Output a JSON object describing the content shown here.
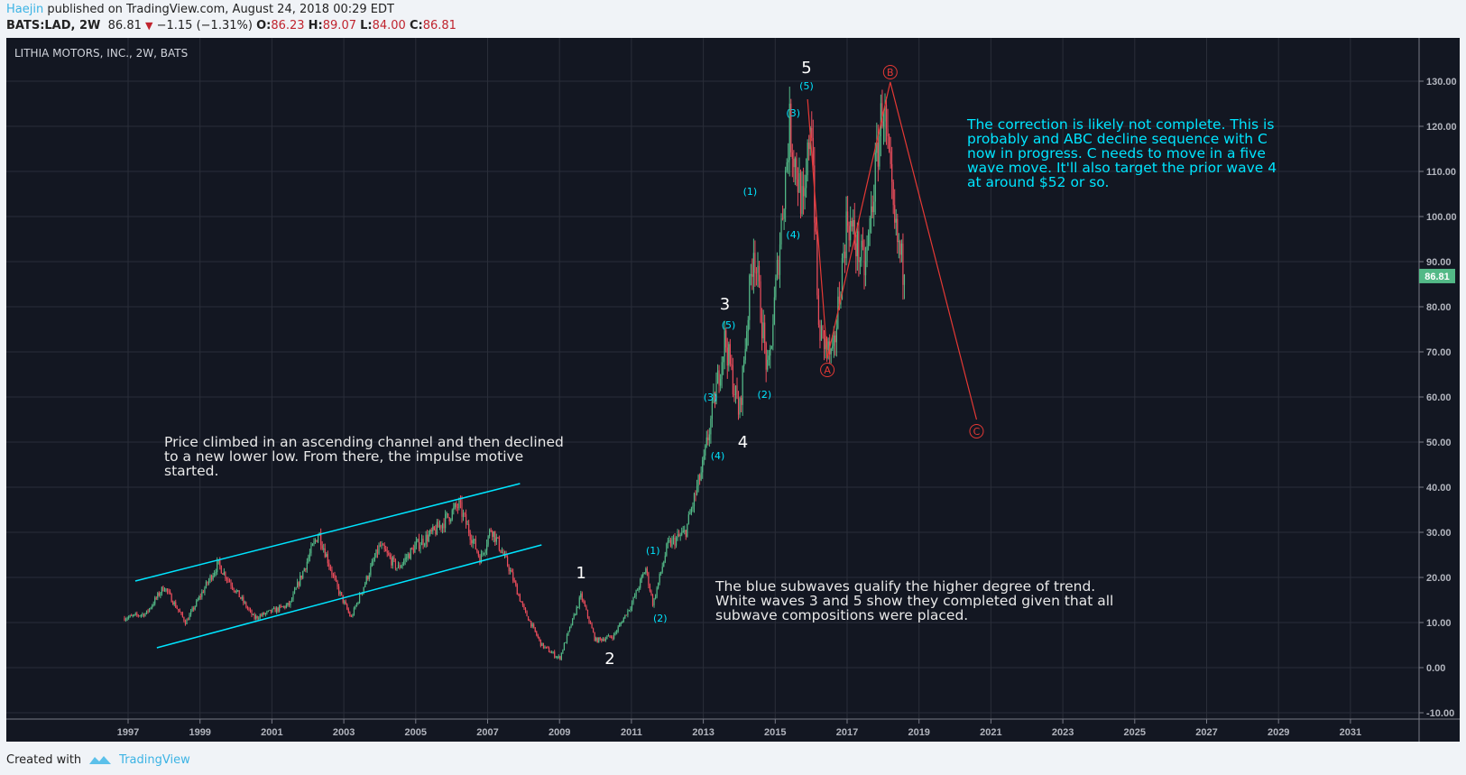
{
  "header": {
    "author": "Haejin",
    "published": "published on TradingView.com, August 24, 2018 00:29 EDT",
    "symbol": "BATS:LAD, 2W",
    "last": "86.81",
    "change": "−1.15 (−1.31%)",
    "o_label": "O:",
    "o": "86.23",
    "h_label": "H:",
    "h": "89.07",
    "l_label": "L:",
    "l": "84.00",
    "c_label": "C:",
    "c": "86.81"
  },
  "chart_title": "LITHIA MOTORS, INC., 2W, BATS",
  "notes": {
    "left": "Price climbed in an ascending channel and then declined\nto a new lower low. From there, the impulse motive\nstarted.",
    "right": "The correction is likely not complete. This is\nprobably and ABC decline sequence with C\nnow in progress. C needs to move in a five\nwave move. It'll also target the prior wave 4\nat around $52 or so.",
    "bottom": "The blue subwaves qualify the higher degree of trend.\nWhite waves 3 and 5 show they completed given that all\nsubwave compositions were placed."
  },
  "footer": {
    "created_with": "Created with",
    "brand": "TradingView"
  },
  "colors": {
    "up": "#53b987",
    "down": "#eb4d5c",
    "cyan": "#00e5ff",
    "annot_red": "#e53935",
    "bg": "#131722",
    "grid": "#2a2e39",
    "last_price_bg": "#53b987"
  },
  "chart_data": {
    "type": "candlestick",
    "interval": "2W",
    "last_price": "86.81",
    "x_ticks": [
      "1997",
      "1999",
      "2001",
      "2003",
      "2005",
      "2007",
      "2009",
      "2011",
      "2013",
      "2015",
      "2017",
      "2019",
      "2021",
      "2023",
      "2025",
      "2027",
      "2029",
      "2031"
    ],
    "y_ticks": [
      "130.00",
      "120.00",
      "110.00",
      "100.00",
      "90.00",
      "80.00",
      "70.00",
      "60.00",
      "50.00",
      "40.00",
      "30.00",
      "20.00",
      "10.00",
      "0.00",
      "-10.00"
    ],
    "ylim": [
      -12,
      140
    ],
    "price_path": [
      [
        1996.9,
        11
      ],
      [
        1997.5,
        12
      ],
      [
        1998,
        18
      ],
      [
        1998.6,
        10
      ],
      [
        1999.5,
        23
      ],
      [
        2000,
        17
      ],
      [
        2000.5,
        11
      ],
      [
        2001.5,
        14
      ],
      [
        2002.3,
        30
      ],
      [
        2002.8,
        18
      ],
      [
        2003.2,
        11
      ],
      [
        2004,
        27
      ],
      [
        2004.5,
        22
      ],
      [
        2005,
        27
      ],
      [
        2005.5,
        30
      ],
      [
        2006.2,
        36
      ],
      [
        2006.8,
        24
      ],
      [
        2007.1,
        31
      ],
      [
        2007.6,
        22
      ],
      [
        2008,
        13
      ],
      [
        2008.5,
        5
      ],
      [
        2009,
        2
      ],
      [
        2009.6,
        16
      ],
      [
        2010,
        6
      ],
      [
        2010.5,
        7
      ],
      [
        2011,
        14
      ],
      [
        2011.4,
        22
      ],
      [
        2011.6,
        14
      ],
      [
        2012,
        27
      ],
      [
        2012.5,
        30
      ],
      [
        2013,
        45
      ],
      [
        2013.6,
        73
      ],
      [
        2014,
        56
      ],
      [
        2014.4,
        94
      ],
      [
        2014.8,
        64
      ],
      [
        2015.4,
        120
      ],
      [
        2015.8,
        100
      ],
      [
        2016,
        125
      ],
      [
        2016.2,
        75
      ],
      [
        2016.6,
        68
      ],
      [
        2017,
        100
      ],
      [
        2017.5,
        88
      ],
      [
        2018,
        126
      ],
      [
        2018.3,
        98
      ],
      [
        2018.6,
        86.81
      ]
    ],
    "wave_labels": [
      {
        "text": "5",
        "x": 2015.87,
        "y": 133,
        "style": "white"
      },
      {
        "text": "(5)",
        "x": 2015.87,
        "y": 129,
        "style": "cyan"
      },
      {
        "text": "(3)",
        "x": 2015.5,
        "y": 123,
        "style": "cyan"
      },
      {
        "text": "(4)",
        "x": 2015.5,
        "y": 96,
        "style": "cyan"
      },
      {
        "text": "(1)",
        "x": 2014.3,
        "y": 105.6,
        "style": "cyan"
      },
      {
        "text": "(2)",
        "x": 2014.7,
        "y": 60.6,
        "style": "cyan"
      },
      {
        "text": "3",
        "x": 2013.6,
        "y": 80.6,
        "style": "white"
      },
      {
        "text": "(5)",
        "x": 2013.7,
        "y": 76,
        "style": "cyan"
      },
      {
        "text": "(3)",
        "x": 2013.2,
        "y": 60,
        "style": "cyan"
      },
      {
        "text": "(4)",
        "x": 2013.4,
        "y": 47,
        "style": "cyan"
      },
      {
        "text": "4",
        "x": 2014.1,
        "y": 50,
        "style": "white"
      },
      {
        "text": "1",
        "x": 2009.6,
        "y": 21,
        "style": "white"
      },
      {
        "text": "2",
        "x": 2010.4,
        "y": 2,
        "style": "white"
      },
      {
        "text": "(1)",
        "x": 2011.6,
        "y": 26,
        "style": "cyan"
      },
      {
        "text": "(2)",
        "x": 2011.8,
        "y": 11,
        "style": "cyan"
      },
      {
        "text": "B",
        "x": 2018.2,
        "y": 132,
        "style": "circle"
      },
      {
        "text": "A",
        "x": 2016.45,
        "y": 66,
        "style": "circle"
      },
      {
        "text": "C",
        "x": 2020.6,
        "y": 52.4,
        "style": "circle"
      }
    ],
    "abc_path": [
      [
        2015.9,
        126
      ],
      [
        2016.45,
        68.6
      ],
      [
        2018.2,
        129.8
      ],
      [
        2020.6,
        55
      ]
    ],
    "channel": {
      "upper": [
        [
          1997.2,
          19.2
        ],
        [
          2007.9,
          40.8
        ]
      ],
      "lower": [
        [
          1997.8,
          4.4
        ],
        [
          2008.5,
          27.2
        ]
      ]
    }
  }
}
